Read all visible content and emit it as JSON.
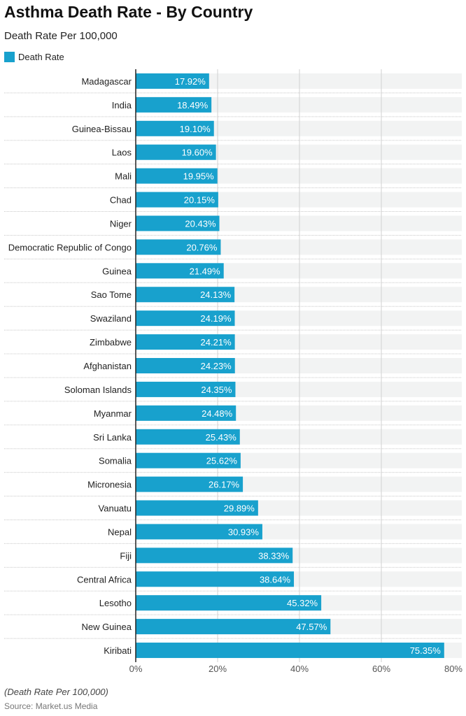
{
  "chart_data": {
    "type": "bar",
    "orientation": "horizontal",
    "title": "Asthma Death Rate - By Country",
    "subtitle": "Death Rate Per 100,000",
    "legend": {
      "position": "top-left",
      "entries": [
        "Death Rate"
      ]
    },
    "categories": [
      "Madagascar",
      "India",
      "Guinea-Bissau",
      "Laos",
      "Mali",
      "Chad",
      "Niger",
      "Democratic Republic of Congo",
      "Guinea",
      "Sao Tome",
      "Swaziland",
      "Zimbabwe",
      "Afghanistan",
      "Soloman Islands",
      "Myanmar",
      "Sri Lanka",
      "Somalia",
      "Micronesia",
      "Vanuatu",
      "Nepal",
      "Fiji",
      "Central Africa",
      "Lesotho",
      "New Guinea",
      "Kiribati"
    ],
    "series": [
      {
        "name": "Death Rate",
        "values": [
          17.92,
          18.49,
          19.1,
          19.6,
          19.95,
          20.15,
          20.43,
          20.76,
          21.49,
          24.13,
          24.19,
          24.21,
          24.23,
          24.35,
          24.48,
          25.43,
          25.62,
          26.17,
          29.89,
          30.93,
          38.33,
          38.64,
          45.32,
          47.57,
          75.35
        ]
      }
    ],
    "data_labels": [
      "17.92%",
      "18.49%",
      "19.10%",
      "19.60%",
      "19.95%",
      "20.15%",
      "20.43%",
      "20.76%",
      "21.49%",
      "24.13%",
      "24.19%",
      "24.21%",
      "24.23%",
      "24.35%",
      "24.48%",
      "25.43%",
      "25.62%",
      "26.17%",
      "29.89%",
      "30.93%",
      "38.33%",
      "38.64%",
      "45.32%",
      "47.57%",
      "75.35%"
    ],
    "xlim": [
      0,
      80
    ],
    "xticks": [
      "0%",
      "20%",
      "40%",
      "60%",
      "80%"
    ],
    "grid": true,
    "colors": {
      "bar": "#18a1cd",
      "track": "#f2f3f3",
      "grid": "#d0d0d0"
    }
  },
  "footer": {
    "note": "(Death Rate Per 100,000)",
    "source": "Source: Market.us Media"
  }
}
